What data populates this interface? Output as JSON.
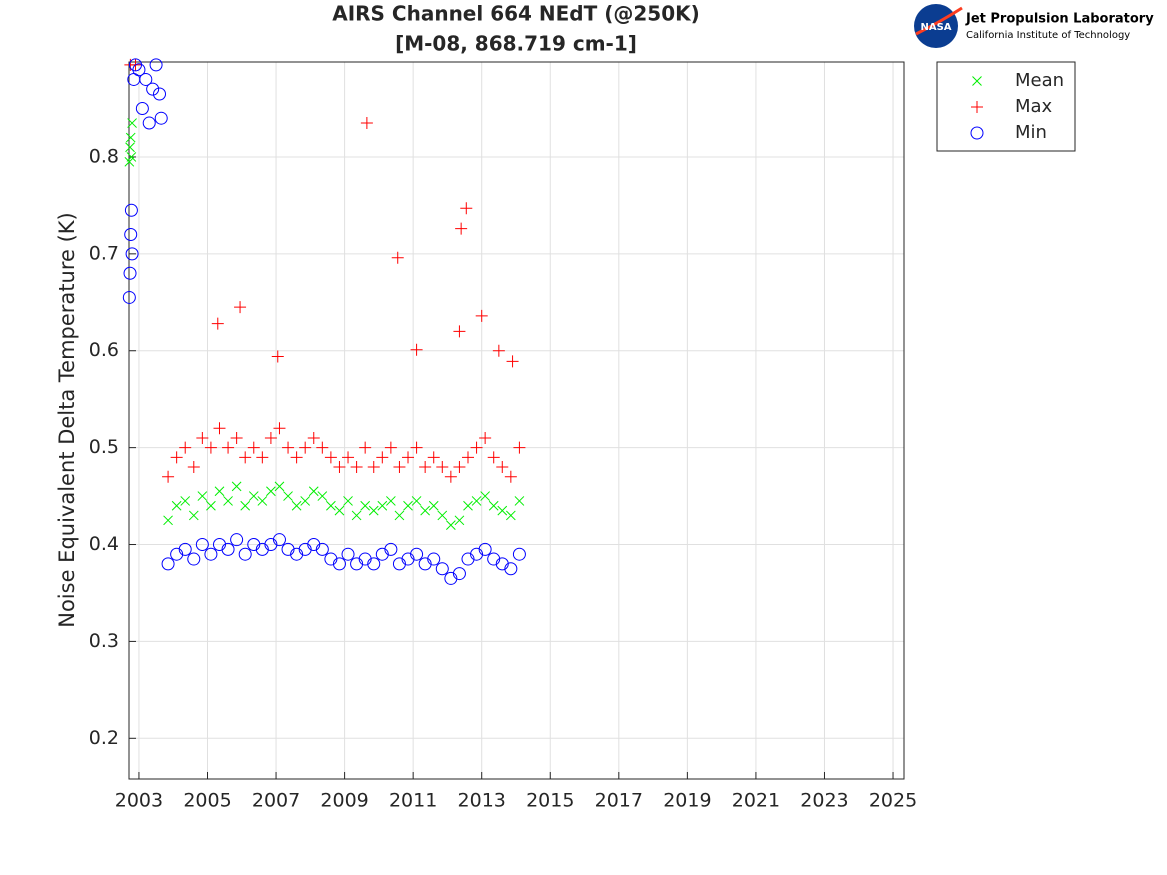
{
  "chart_data": {
    "type": "scatter",
    "title": "AIRS Channel 664 NEdT (@250K)",
    "subtitle": "[M-08, 868.719 cm-1]",
    "y_label": "Noise Equivalent Delta Temperature (K)",
    "xlim": [
      2002.71,
      2025.32
    ],
    "ylim": [
      0.158,
      0.898
    ],
    "xticks": [
      2003,
      2005,
      2007,
      2009,
      2011,
      2013,
      2015,
      2017,
      2019,
      2021,
      2023,
      2025
    ],
    "yticks": [
      0.2,
      0.3,
      0.4,
      0.5,
      0.6,
      0.7,
      0.8
    ],
    "grid": true,
    "legend": "outside-upper-right",
    "series": [
      {
        "name": "Mean",
        "color": "#00ee00",
        "marker": "x",
        "x": [
          2002.72,
          2002.74,
          2002.76,
          2002.78,
          2002.8,
          2003.85,
          2004.1,
          2004.35,
          2004.6,
          2004.85,
          2005.1,
          2005.35,
          2005.6,
          2005.85,
          2006.1,
          2006.35,
          2006.6,
          2006.85,
          2007.1,
          2007.35,
          2007.6,
          2007.85,
          2008.1,
          2008.35,
          2008.6,
          2008.85,
          2009.1,
          2009.35,
          2009.6,
          2009.85,
          2010.1,
          2010.35,
          2010.6,
          2010.85,
          2011.1,
          2011.35,
          2011.6,
          2011.85,
          2012.1,
          2012.35,
          2012.6,
          2012.85,
          2013.1,
          2013.35,
          2013.6,
          2013.85,
          2014.1
        ],
        "values": [
          0.795,
          0.81,
          0.82,
          0.8,
          0.835,
          0.425,
          0.44,
          0.445,
          0.43,
          0.45,
          0.44,
          0.455,
          0.445,
          0.46,
          0.44,
          0.45,
          0.445,
          0.455,
          0.46,
          0.45,
          0.44,
          0.445,
          0.455,
          0.45,
          0.44,
          0.435,
          0.445,
          0.43,
          0.44,
          0.435,
          0.44,
          0.445,
          0.43,
          0.44,
          0.445,
          0.435,
          0.44,
          0.43,
          0.42,
          0.425,
          0.44,
          0.445,
          0.45,
          0.44,
          0.435,
          0.43,
          0.445
        ]
      },
      {
        "name": "Max",
        "color": "#ff0000",
        "marker": "+",
        "x": [
          2002.75,
          2002.9,
          2003.85,
          2004.1,
          2004.35,
          2004.6,
          2004.85,
          2005.1,
          2005.35,
          2005.6,
          2005.85,
          2006.1,
          2006.35,
          2006.6,
          2006.85,
          2007.1,
          2007.35,
          2007.6,
          2007.85,
          2008.1,
          2008.35,
          2008.6,
          2008.85,
          2009.1,
          2009.35,
          2009.6,
          2009.85,
          2010.1,
          2010.35,
          2010.6,
          2010.85,
          2011.1,
          2011.35,
          2011.6,
          2011.85,
          2012.1,
          2012.35,
          2012.6,
          2012.85,
          2013.1,
          2013.35,
          2013.6,
          2013.85,
          2014.1,
          2005.3,
          2005.95,
          2007.05,
          2009.65,
          2010.55,
          2011.1,
          2012.35,
          2012.4,
          2012.55,
          2013.0,
          2013.5,
          2013.9
        ],
        "values": [
          0.895,
          0.895,
          0.47,
          0.49,
          0.5,
          0.48,
          0.51,
          0.5,
          0.52,
          0.5,
          0.51,
          0.49,
          0.5,
          0.49,
          0.51,
          0.52,
          0.5,
          0.49,
          0.5,
          0.51,
          0.5,
          0.49,
          0.48,
          0.49,
          0.48,
          0.5,
          0.48,
          0.49,
          0.5,
          0.48,
          0.49,
          0.5,
          0.48,
          0.49,
          0.48,
          0.47,
          0.48,
          0.49,
          0.5,
          0.51,
          0.49,
          0.48,
          0.47,
          0.5,
          0.628,
          0.645,
          0.594,
          0.835,
          0.696,
          0.601,
          0.62,
          0.726,
          0.747,
          0.636,
          0.6,
          0.589
        ]
      },
      {
        "name": "Min",
        "color": "#0000ff",
        "marker": "o",
        "x": [
          2002.72,
          2002.74,
          2002.76,
          2002.78,
          2002.8,
          2002.85,
          2002.9,
          2003.0,
          2003.1,
          2003.2,
          2003.3,
          2003.4,
          2003.5,
          2003.6,
          2003.65,
          2003.85,
          2004.1,
          2004.35,
          2004.6,
          2004.85,
          2005.1,
          2005.35,
          2005.6,
          2005.85,
          2006.1,
          2006.35,
          2006.6,
          2006.85,
          2007.1,
          2007.35,
          2007.6,
          2007.85,
          2008.1,
          2008.35,
          2008.6,
          2008.85,
          2009.1,
          2009.35,
          2009.6,
          2009.85,
          2010.1,
          2010.35,
          2010.6,
          2010.85,
          2011.1,
          2011.35,
          2011.6,
          2011.85,
          2012.1,
          2012.35,
          2012.6,
          2012.85,
          2013.1,
          2013.35,
          2013.6,
          2013.85,
          2014.1
        ],
        "values": [
          0.655,
          0.68,
          0.72,
          0.745,
          0.7,
          0.88,
          0.895,
          0.89,
          0.85,
          0.88,
          0.835,
          0.87,
          0.895,
          0.865,
          0.84,
          0.38,
          0.39,
          0.395,
          0.385,
          0.4,
          0.39,
          0.4,
          0.395,
          0.405,
          0.39,
          0.4,
          0.395,
          0.4,
          0.405,
          0.395,
          0.39,
          0.395,
          0.4,
          0.395,
          0.385,
          0.38,
          0.39,
          0.38,
          0.385,
          0.38,
          0.39,
          0.395,
          0.38,
          0.385,
          0.39,
          0.38,
          0.385,
          0.375,
          0.365,
          0.37,
          0.385,
          0.39,
          0.395,
          0.385,
          0.38,
          0.375,
          0.39
        ]
      }
    ]
  },
  "logo": {
    "agency": "NASA",
    "name": "Jet Propulsion Laboratory",
    "institution": "California Institute of Technology"
  }
}
